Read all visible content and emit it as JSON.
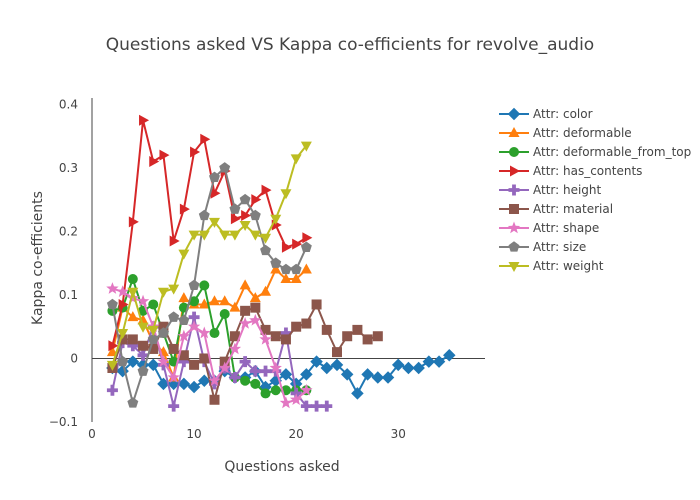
{
  "chart_data": {
    "type": "line",
    "title": "Questions asked VS Kappa co-efficients for revolve_audio",
    "xlabel": "Questions asked",
    "ylabel": "Kappa co-efficients",
    "xlim": [
      0,
      38.5
    ],
    "ylim": [
      -0.1,
      0.41
    ],
    "xticks": [
      0,
      10,
      20,
      30
    ],
    "yticks": [
      -0.1,
      0,
      0.1,
      0.2,
      0.3,
      0.4
    ],
    "grid": false,
    "legend_position": "right",
    "series": [
      {
        "name": "Attr: color",
        "color": "#1f77b4",
        "marker": "diamond",
        "x": [
          2,
          3,
          4,
          5,
          6,
          7,
          8,
          9,
          10,
          11,
          12,
          13,
          14,
          15,
          16,
          17,
          18,
          19,
          20,
          21,
          22,
          23,
          24,
          25,
          26,
          27,
          28,
          29,
          30,
          31,
          32,
          33,
          34,
          35
        ],
        "y": [
          -0.015,
          -0.02,
          -0.005,
          -0.01,
          -0.01,
          -0.04,
          -0.04,
          -0.04,
          -0.045,
          -0.035,
          -0.035,
          -0.02,
          -0.03,
          -0.03,
          -0.02,
          -0.045,
          -0.035,
          -0.025,
          -0.04,
          -0.025,
          -0.005,
          -0.015,
          -0.01,
          -0.025,
          -0.055,
          -0.025,
          -0.03,
          -0.03,
          -0.01,
          -0.015,
          -0.015,
          -0.005,
          -0.005,
          0.005
        ]
      },
      {
        "name": "Attr: deformable",
        "color": "#ff7f0e",
        "marker": "triangle-up",
        "x": [
          2,
          3,
          4,
          5,
          6,
          7,
          8,
          9,
          10,
          11,
          12,
          13,
          14,
          15,
          16,
          17,
          18,
          19,
          20,
          21
        ],
        "y": [
          0.01,
          0.08,
          0.065,
          0.06,
          0.025,
          0.01,
          -0.03,
          0.095,
          0.085,
          0.085,
          0.09,
          0.09,
          0.08,
          0.115,
          0.095,
          0.105,
          0.14,
          0.125,
          0.125,
          0.14
        ]
      },
      {
        "name": "Attr: deformable_from_top",
        "color": "#2ca02c",
        "marker": "circle",
        "x": [
          2,
          3,
          4,
          5,
          6,
          7,
          8,
          9,
          10,
          11,
          12,
          13,
          14,
          15,
          16,
          17,
          18,
          19,
          20,
          21
        ],
        "y": [
          0.075,
          0.08,
          0.125,
          0.075,
          0.085,
          0.04,
          -0.005,
          0.08,
          0.09,
          0.115,
          0.04,
          0.07,
          -0.03,
          -0.035,
          -0.04,
          -0.055,
          -0.05,
          -0.05,
          -0.05,
          -0.05
        ]
      },
      {
        "name": "Attr: has_contents",
        "color": "#d62728",
        "marker": "triangle-right",
        "x": [
          2,
          3,
          4,
          5,
          6,
          7,
          8,
          9,
          10,
          11,
          12,
          13,
          14,
          15,
          16,
          17,
          18,
          19,
          20,
          21
        ],
        "y": [
          0.02,
          0.085,
          0.215,
          0.375,
          0.31,
          0.32,
          0.185,
          0.235,
          0.325,
          0.345,
          0.26,
          0.295,
          0.22,
          0.225,
          0.25,
          0.265,
          0.21,
          0.175,
          0.18,
          0.19
        ]
      },
      {
        "name": "Attr: height",
        "color": "#9467bd",
        "marker": "cross",
        "x": [
          2,
          3,
          4,
          5,
          6,
          7,
          8,
          9,
          10,
          11,
          12,
          13,
          14,
          15,
          16,
          17,
          18,
          19,
          20,
          21,
          22,
          23
        ],
        "y": [
          -0.05,
          0.025,
          0.02,
          0.005,
          0.05,
          -0.01,
          -0.075,
          -0.005,
          0.065,
          -0.005,
          -0.04,
          -0.015,
          -0.03,
          -0.005,
          -0.02,
          -0.02,
          -0.02,
          0.04,
          -0.055,
          -0.075,
          -0.075,
          -0.075
        ]
      },
      {
        "name": "Attr: material",
        "color": "#8c564b",
        "marker": "square",
        "x": [
          2,
          3,
          4,
          5,
          6,
          7,
          8,
          9,
          10,
          11,
          12,
          13,
          14,
          15,
          16,
          17,
          18,
          19,
          20,
          21,
          22,
          23,
          24,
          25,
          26,
          27,
          28
        ],
        "y": [
          -0.015,
          0.03,
          0.03,
          0.02,
          0.015,
          0.05,
          0.015,
          0.005,
          -0.01,
          0.0,
          -0.065,
          -0.005,
          0.035,
          0.075,
          0.08,
          0.045,
          0.035,
          0.03,
          0.05,
          0.055,
          0.085,
          0.045,
          0.01,
          0.035,
          0.045,
          0.03,
          0.035
        ]
      },
      {
        "name": "Attr: shape",
        "color": "#e377c2",
        "marker": "star",
        "x": [
          2,
          3,
          4,
          5,
          6,
          7,
          8,
          9,
          10,
          11,
          12,
          13,
          14,
          15,
          16,
          17,
          18,
          19,
          20,
          21
        ],
        "y": [
          0.11,
          0.105,
          0.095,
          0.09,
          0.05,
          -0.005,
          -0.03,
          0.035,
          0.05,
          0.04,
          -0.035,
          -0.015,
          0.015,
          0.055,
          0.06,
          0.03,
          -0.015,
          -0.07,
          -0.065,
          -0.05
        ]
      },
      {
        "name": "Attr: size",
        "color": "#7f7f7f",
        "marker": "pentagon",
        "x": [
          2,
          3,
          4,
          5,
          6,
          7,
          8,
          9,
          10,
          11,
          12,
          13,
          14,
          15,
          16,
          17,
          18,
          19,
          20,
          21
        ],
        "y": [
          0.085,
          -0.005,
          -0.07,
          -0.02,
          0.03,
          0.04,
          0.065,
          0.06,
          0.115,
          0.225,
          0.285,
          0.3,
          0.235,
          0.25,
          0.225,
          0.17,
          0.15,
          0.14,
          0.14,
          0.175
        ]
      },
      {
        "name": "Attr: weight",
        "color": "#bcbd22",
        "marker": "triangle-down",
        "x": [
          2,
          3,
          4,
          5,
          6,
          7,
          8,
          9,
          10,
          11,
          12,
          13,
          14,
          15,
          16,
          17,
          18,
          19,
          20,
          21
        ],
        "y": [
          -0.01,
          0.04,
          0.105,
          0.05,
          0.045,
          0.105,
          0.11,
          0.165,
          0.195,
          0.195,
          0.215,
          0.195,
          0.195,
          0.21,
          0.195,
          0.19,
          0.22,
          0.26,
          0.315,
          0.335
        ]
      }
    ]
  }
}
